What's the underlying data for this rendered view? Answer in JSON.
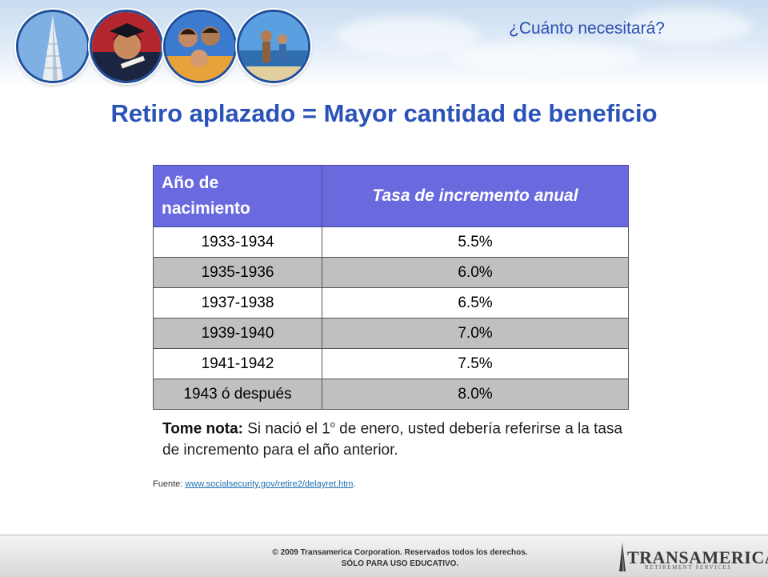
{
  "header": {
    "subtitle": "¿Cuánto necesitará?"
  },
  "title": "Retiro aplazado = Mayor cantidad de beneficio",
  "table": {
    "col1_header_line1": "Año de",
    "col1_header_line2": "nacimiento",
    "col2_header": "Tasa de incremento anual",
    "rows": [
      {
        "year": "1933-1934",
        "rate": "5.5%"
      },
      {
        "year": "1935-1936",
        "rate": "6.0%"
      },
      {
        "year": "1937-1938",
        "rate": "6.5%"
      },
      {
        "year": "1939-1940",
        "rate": "7.0%"
      },
      {
        "year": "1941-1942",
        "rate": "7.5%"
      },
      {
        "year": "1943 ó después",
        "rate": "8.0%"
      }
    ]
  },
  "note": {
    "label": "Tome nota:",
    "text_before_sup": " Si nació el 1",
    "sup": "o",
    "text_after_sup": " de enero, usted debería referirse a la tasa de incremento para el año anterior."
  },
  "source": {
    "prefix": "Fuente: ",
    "link": "www.socialsecurity.gov/retire2/delayret.htm",
    "suffix": "."
  },
  "footer": {
    "copyright_line1": "© 2009 Transamerica Corporation. Reservados todos los derechos.",
    "copyright_line2": "SÓLO PARA USO EDUCATIVO.",
    "logo_word": "TRANSAMERICA",
    "logo_sub": "RETIREMENT SERVICES"
  },
  "colors": {
    "title_blue": "#2a52b8",
    "header_purple": "#6a6ade",
    "row_gray": "#c0c0c0"
  }
}
